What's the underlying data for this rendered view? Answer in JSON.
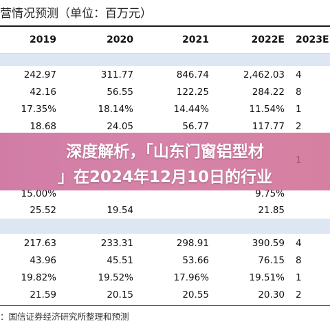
{
  "title": "营情况预测（单位：百万元）",
  "columns": [
    "2019",
    "2020",
    "2021",
    "2022E",
    "2023E"
  ],
  "rows": [
    [
      "242.97",
      "311.77",
      "846.74",
      "2,462.03",
      "4"
    ],
    [
      "42.16",
      "56.55",
      "122.25",
      "284.22",
      "8"
    ],
    [
      "17.35%",
      "18.14%",
      "14.44%",
      "11.54%",
      "1"
    ],
    [
      "18.68",
      "24.05",
      "56.77",
      "117.77",
      "2"
    ],
    [
      "",
      "",
      "",
      "",
      "1"
    ],
    [
      "15.00%",
      "",
      "",
      "9.75%",
      ""
    ],
    [
      "25.52",
      "19.54",
      "",
      "21.85",
      ""
    ],
    [
      "217.63",
      "233.31",
      "298.91",
      "390.59",
      "4"
    ],
    [
      "43.96",
      "45.51",
      "53.66",
      "76.15",
      "8"
    ],
    [
      "19.82%",
      "19.52%",
      "17.96%",
      "19.51%",
      "1"
    ],
    [
      "21.59",
      "20.15",
      "20.55",
      "20.30",
      "2"
    ]
  ],
  "overlay": {
    "line1": "深度解析，「山东门窗铝型材",
    "line2": "」在2024年12月10日的行业"
  },
  "source": "：国信证券经济研究所整理和预测",
  "colors": {
    "band": "#dde6f3",
    "overlay": "#c96495"
  }
}
